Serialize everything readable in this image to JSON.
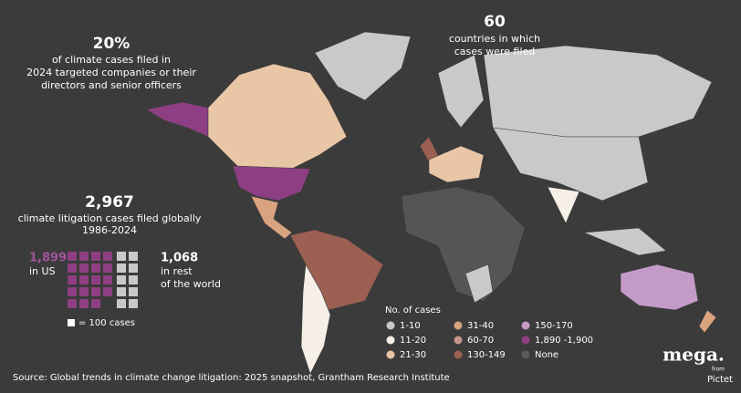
{
  "header": {
    "stat": "20%",
    "stat_text": [
      "of climate cases filed in",
      "2024 targeted companies or their",
      "directors and senior officers"
    ]
  },
  "countries": {
    "stat": "60",
    "stat_text": [
      "countries in which",
      "cases were filed"
    ]
  },
  "global": {
    "stat": "2,967",
    "stat_text": [
      "climate litigation cases filed globally",
      "1986-2024"
    ],
    "us": {
      "stat": "1,899",
      "label": "in US"
    },
    "rest": {
      "stat": "1,068",
      "label": [
        "in rest",
        "of the world"
      ]
    },
    "unit_label": "= 100 cases"
  },
  "legend": {
    "title": "No. of cases",
    "items": [
      {
        "label": "1-10",
        "color": "#c9c9c9"
      },
      {
        "label": "11-20",
        "color": "#f6efe8"
      },
      {
        "label": "21-30",
        "color": "#e9c6a6"
      },
      {
        "label": "31-40",
        "color": "#daa37f"
      },
      {
        "label": "60-70",
        "color": "#c4968a"
      },
      {
        "label": "130-149",
        "color": "#9b6052"
      },
      {
        "label": "150-170",
        "color": "#c49bc8"
      },
      {
        "label": "1,890 -1,900",
        "color": "#8e3f84"
      },
      {
        "label": "None",
        "color": "#5a5a5a"
      }
    ]
  },
  "source": "Source: Global trends in climate change litigation: 2025 snapshot, Grantham Research Institute",
  "logo": {
    "name": "mega.",
    "from": "from",
    "brand": "Pictet"
  }
}
